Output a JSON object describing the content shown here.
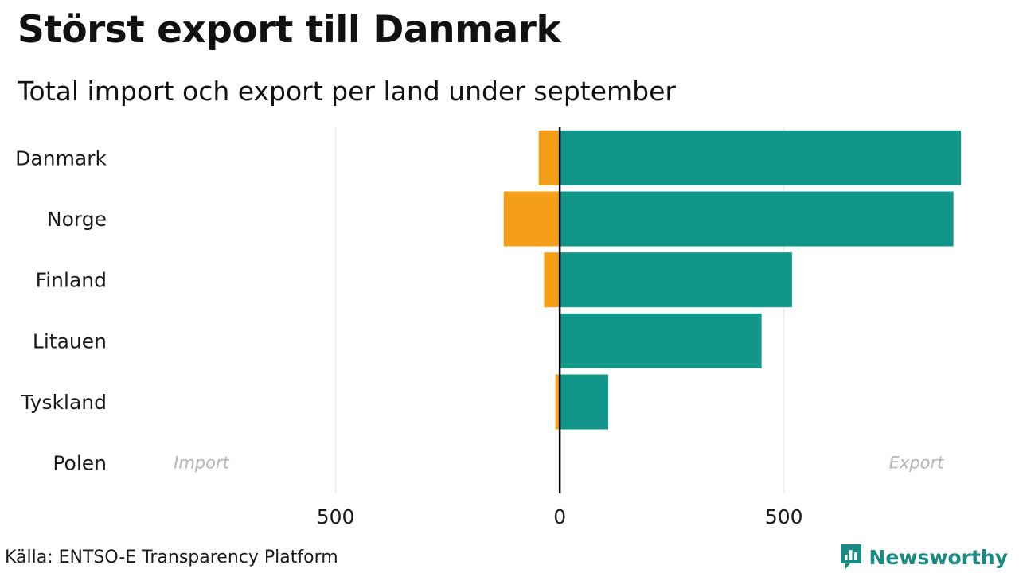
{
  "title": "Störst export till Danmark",
  "subtitle": "Total import och export per land under september",
  "source": "Källa: ENTSO-E Transparency Platform",
  "brand": "Newsworthy",
  "colors": {
    "import": "#f59e18",
    "export": "#13968a",
    "brand": "#1a8a83"
  },
  "chart_data": {
    "type": "bar",
    "orientation": "horizontal",
    "categories": [
      "Danmark",
      "Norge",
      "Finland",
      "Litauen",
      "Tyskland",
      "Polen"
    ],
    "series": [
      {
        "name": "Import",
        "values": [
          -47,
          -125,
          -35,
          0,
          -10,
          0
        ]
      },
      {
        "name": "Export",
        "values": [
          895,
          878,
          518,
          450,
          108,
          0
        ]
      }
    ],
    "xlim": [
      -1000,
      900
    ],
    "xticks": [
      -500,
      0,
      500
    ],
    "xtick_labels": [
      "500",
      "0",
      "500"
    ],
    "annotations": {
      "left": "Import",
      "right": "Export"
    },
    "grid": true
  }
}
